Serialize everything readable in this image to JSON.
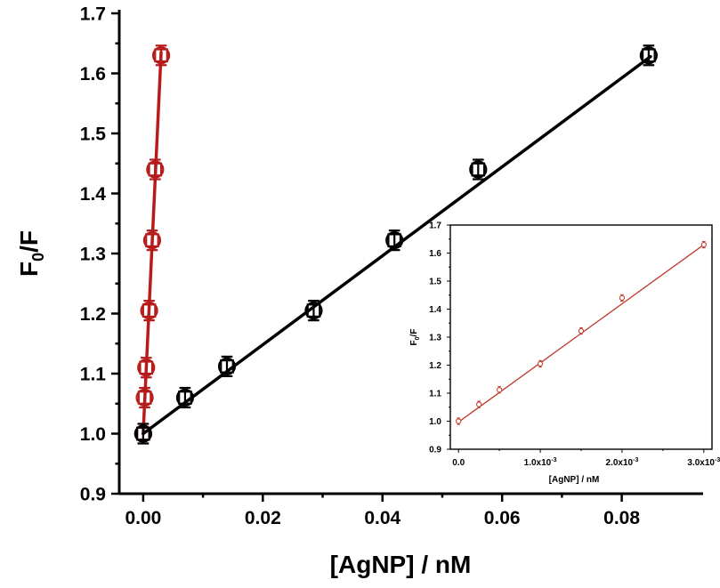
{
  "chart_data": [
    {
      "type": "scatter",
      "title": "",
      "xlabel": "[AgNP] / nM",
      "ylabel": "F0/F",
      "ylabel_parts": {
        "main": "F",
        "sub": "0",
        "tail": "/F"
      },
      "xlim": [
        -0.004,
        0.093
      ],
      "ylim": [
        0.9,
        1.7
      ],
      "x_ticks": [
        0.0,
        0.02,
        0.04,
        0.06,
        0.08
      ],
      "x_tick_labels": [
        "0.00",
        "0.02",
        "0.04",
        "0.06",
        "0.08"
      ],
      "y_ticks": [
        0.9,
        1.0,
        1.1,
        1.2,
        1.3,
        1.4,
        1.5,
        1.6,
        1.7
      ],
      "y_tick_labels": [
        "0.9",
        "1.0",
        "1.1",
        "1.2",
        "1.3",
        "1.4",
        "1.5",
        "1.6",
        "1.7"
      ],
      "grid": false,
      "series": [
        {
          "color": "#b71c1c",
          "marker": "square-circle",
          "points": [
            {
              "x": 0.0,
              "y": 1.0
            },
            {
              "x": 0.00025,
              "y": 1.06
            },
            {
              "x": 0.0005,
              "y": 1.11
            },
            {
              "x": 0.001,
              "y": 1.205
            },
            {
              "x": 0.0015,
              "y": 1.322
            },
            {
              "x": 0.002,
              "y": 1.44
            },
            {
              "x": 0.003,
              "y": 1.63
            }
          ],
          "fit": {
            "x0": 0.0,
            "y0": 1.0,
            "x1": 0.003,
            "y1": 1.635
          }
        },
        {
          "color": "#000000",
          "marker": "square-circle",
          "points": [
            {
              "x": 0.0,
              "y": 1.0
            },
            {
              "x": 0.007,
              "y": 1.06
            },
            {
              "x": 0.014,
              "y": 1.112
            },
            {
              "x": 0.0285,
              "y": 1.205
            },
            {
              "x": 0.042,
              "y": 1.322
            },
            {
              "x": 0.056,
              "y": 1.44
            },
            {
              "x": 0.0845,
              "y": 1.63
            }
          ],
          "fit": {
            "x0": 0.0,
            "y0": 1.0,
            "x1": 0.0848,
            "y1": 1.628
          }
        }
      ]
    },
    {
      "type": "scatter",
      "role": "inset",
      "title": "",
      "xlabel": "[AgNP] / nM",
      "ylabel": "F0/F",
      "ylabel_parts": {
        "main": "F",
        "sub": "0",
        "tail": "/F"
      },
      "xlim": [
        -0.0001,
        0.0031
      ],
      "ylim": [
        0.9,
        1.7
      ],
      "x_ticks": [
        0.0,
        0.001,
        0.002,
        0.003
      ],
      "x_tick_labels": [
        {
          "base": "0.0",
          "exp": ""
        },
        {
          "base": "1.0x10",
          "exp": "-3"
        },
        {
          "base": "2.0x10",
          "exp": "-3"
        },
        {
          "base": "3.0x10",
          "exp": "-3"
        }
      ],
      "y_ticks": [
        0.9,
        1.0,
        1.1,
        1.2,
        1.3,
        1.4,
        1.5,
        1.6,
        1.7
      ],
      "y_tick_labels": [
        "0.9",
        "1.0",
        "1.1",
        "1.2",
        "1.3",
        "1.4",
        "1.5",
        "1.6",
        "1.7"
      ],
      "grid": false,
      "series": [
        {
          "color": "#c0392b",
          "marker": "circle",
          "points": [
            {
              "x": 0.0,
              "y": 1.0
            },
            {
              "x": 0.00025,
              "y": 1.06
            },
            {
              "x": 0.0005,
              "y": 1.112
            },
            {
              "x": 0.001,
              "y": 1.205
            },
            {
              "x": 0.0015,
              "y": 1.322
            },
            {
              "x": 0.002,
              "y": 1.44
            },
            {
              "x": 0.003,
              "y": 1.63
            }
          ],
          "fit": {
            "x0": 0.0,
            "y0": 0.997,
            "x1": 0.003,
            "y1": 1.63
          }
        }
      ]
    }
  ]
}
